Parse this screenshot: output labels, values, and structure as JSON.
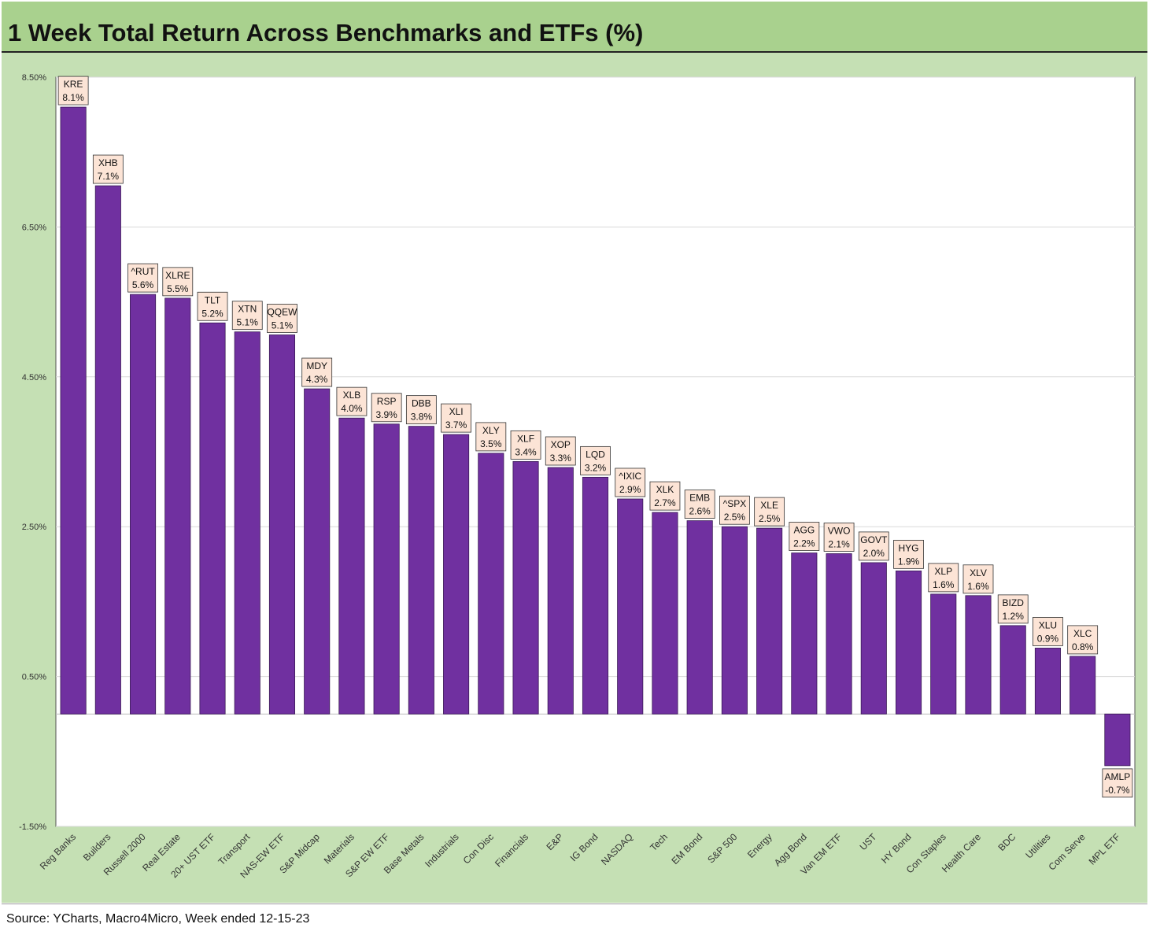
{
  "header": {
    "title": "1 Week Total Return Across Benchmarks and ETFs (%)"
  },
  "footer": {
    "source": "Source: YCharts, Macro4Micro, Week ended 12-15-23"
  },
  "colors": {
    "bar": "#7030a0",
    "label_bg": "#fce4d6",
    "panel": "#c5e0b4",
    "title_bar": "#a9d18e"
  },
  "chart_data": {
    "type": "bar",
    "title": "1 Week Total Return Across Benchmarks and ETFs (%)",
    "ylim": [
      -1.5,
      8.5
    ],
    "yticks": [
      "8.50%",
      "6.50%",
      "4.50%",
      "2.50%",
      "0.50%",
      "-1.50%"
    ],
    "ytick_values": [
      8.5,
      6.5,
      4.5,
      2.5,
      0.5,
      -1.5
    ],
    "grid": true,
    "categories": [
      "Reg Banks",
      "Builders",
      "Russell 2000",
      "Real Estate",
      "20+ UST ETF",
      "Transport",
      "NAS-EW ETF",
      "S&P Midcap",
      "Materials",
      "S&P EW ETF",
      "Base Metals",
      "Industrials",
      "Con Disc",
      "Financials",
      "E&P",
      "IG Bond",
      "NASDAQ",
      "Tech",
      "EM Bond",
      "S&P 500",
      "Energy",
      "Agg Bond",
      "Van EM ETF",
      "UST",
      "HY Bond",
      "Con Staples",
      "Health Care",
      "BDC",
      "Utilities",
      "Com Serve",
      "MPL ETF"
    ],
    "tickers": [
      "KRE",
      "XHB",
      "^RUT",
      "XLRE",
      "TLT",
      "XTN",
      "QQEW",
      "MDY",
      "XLB",
      "RSP",
      "DBB",
      "XLI",
      "XLY",
      "XLF",
      "XOP",
      "LQD",
      "^IXIC",
      "XLK",
      "EMB",
      "^SPX",
      "XLE",
      "AGG",
      "VWO",
      "GOVT",
      "HYG",
      "XLP",
      "XLV",
      "BIZD",
      "XLU",
      "XLC",
      "AMLP"
    ],
    "value_labels": [
      "8.1%",
      "7.1%",
      "5.6%",
      "5.5%",
      "5.2%",
      "5.1%",
      "5.1%",
      "4.3%",
      "4.0%",
      "3.9%",
      "3.8%",
      "3.7%",
      "3.5%",
      "3.4%",
      "3.3%",
      "3.2%",
      "2.9%",
      "2.7%",
      "2.6%",
      "2.5%",
      "2.5%",
      "2.2%",
      "2.1%",
      "2.0%",
      "1.9%",
      "1.6%",
      "1.6%",
      "1.2%",
      "0.9%",
      "0.8%",
      "-0.7%"
    ],
    "values": [
      8.1,
      7.05,
      5.6,
      5.55,
      5.22,
      5.1,
      5.06,
      4.34,
      3.95,
      3.87,
      3.84,
      3.73,
      3.48,
      3.37,
      3.29,
      3.16,
      2.87,
      2.69,
      2.58,
      2.5,
      2.48,
      2.15,
      2.14,
      2.02,
      1.91,
      1.6,
      1.58,
      1.18,
      0.88,
      0.77,
      -0.69
    ]
  }
}
